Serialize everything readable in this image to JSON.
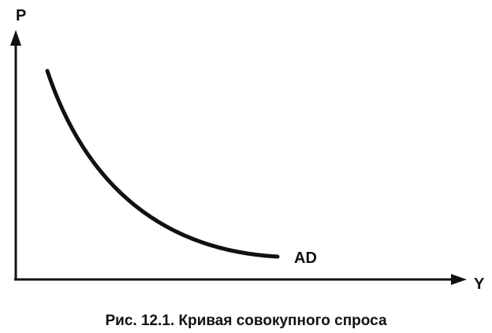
{
  "axes": {
    "y_label": "P",
    "x_label": "Y"
  },
  "curve": {
    "label": "AD"
  },
  "caption": "Рис. 12.1. Кривая совокупного спроса"
}
